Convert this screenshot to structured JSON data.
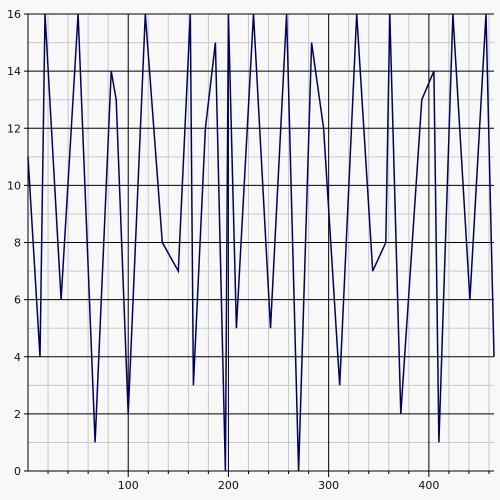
{
  "chart_data": {
    "type": "line",
    "title": "",
    "xlabel": "",
    "ylabel": "",
    "xlim": [
      0,
      465
    ],
    "ylim": [
      0,
      16
    ],
    "x_ticks": [
      100,
      200,
      300,
      400
    ],
    "y_ticks": [
      0,
      2,
      4,
      6,
      8,
      10,
      12,
      14,
      16
    ],
    "x_tick_labels": [
      "100",
      "200",
      "300",
      "400"
    ],
    "y_tick_labels": [
      "0",
      "2",
      "4",
      "6",
      "8",
      "10",
      "12",
      "14",
      "16"
    ],
    "grid": true,
    "legend": "none",
    "colors": {
      "line": "#000066",
      "background": "#f8f8f8",
      "major_grid": "#000000",
      "minor_grid": "#c8c8c8"
    },
    "series": [
      {
        "x": [
          0,
          12,
          17,
          33,
          50,
          67,
          83,
          88,
          100,
          117,
          134,
          150,
          162,
          165,
          177,
          187,
          197,
          200,
          208,
          225,
          242,
          258,
          270,
          283,
          295,
          311,
          328,
          344,
          357,
          361,
          372,
          393,
          405,
          410,
          424,
          441,
          457,
          465
        ],
        "y": [
          11,
          4,
          16,
          6,
          16,
          1,
          14,
          13,
          2,
          16,
          8,
          7,
          16,
          3,
          12,
          15,
          0,
          16,
          5,
          16,
          5,
          16,
          0,
          15,
          12,
          3,
          16,
          7,
          8,
          16,
          2,
          13,
          14,
          1,
          16,
          6,
          16,
          4
        ]
      }
    ]
  }
}
